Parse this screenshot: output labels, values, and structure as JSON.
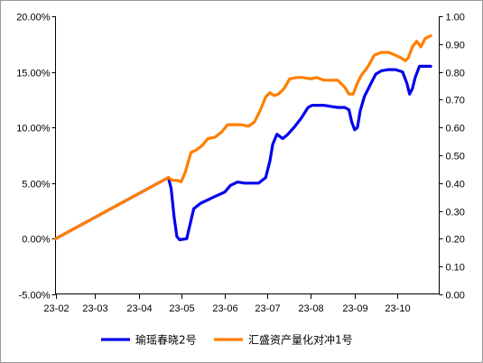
{
  "chart_data": {
    "type": "line",
    "y_left": {
      "min": -5,
      "max": 20,
      "step": 5,
      "unit": "%",
      "ticks": [
        "-5.00%",
        "0.00%",
        "5.00%",
        "10.00%",
        "15.00%",
        "20.00%"
      ]
    },
    "y_right": {
      "min": 0,
      "max": 1,
      "step": 0.1,
      "ticks": [
        "0.00",
        "0.10",
        "0.20",
        "0.30",
        "0.40",
        "0.50",
        "0.60",
        "0.70",
        "0.80",
        "0.90",
        "1.00"
      ]
    },
    "x_ticks": [
      "23-02",
      "23-03",
      "23-04",
      "23-05",
      "23-06",
      "23-07",
      "23-08",
      "23-09",
      "23-10"
    ],
    "grid": false,
    "legend_position": "bottom",
    "series": [
      {
        "name": "瑜瑶春晓2号",
        "color": "#0000ee",
        "axis": "left",
        "x": [
          "2023-02-01",
          "2023-04-22",
          "2023-04-24",
          "2023-04-26",
          "2023-04-28",
          "2023-04-30",
          "2023-05-02",
          "2023-05-05",
          "2023-05-10",
          "2023-05-15",
          "2023-05-20",
          "2023-05-25",
          "2023-06-01",
          "2023-06-05",
          "2023-06-10",
          "2023-06-15",
          "2023-06-20",
          "2023-06-25",
          "2023-06-30",
          "2023-07-03",
          "2023-07-05",
          "2023-07-08",
          "2023-07-12",
          "2023-07-15",
          "2023-07-20",
          "2023-07-25",
          "2023-07-30",
          "2023-08-02",
          "2023-08-05",
          "2023-08-10",
          "2023-08-15",
          "2023-08-20",
          "2023-08-25",
          "2023-08-28",
          "2023-08-30",
          "2023-09-01",
          "2023-09-03",
          "2023-09-05",
          "2023-09-08",
          "2023-09-12",
          "2023-09-16",
          "2023-09-20",
          "2023-09-25",
          "2023-09-30",
          "2023-10-05",
          "2023-10-08",
          "2023-10-10",
          "2023-10-12",
          "2023-10-14",
          "2023-10-17",
          "2023-10-20",
          "2023-10-25"
        ],
        "y": [
          0.0,
          5.5,
          4.5,
          2.0,
          0.2,
          -0.1,
          -0.05,
          0.0,
          2.7,
          3.2,
          3.5,
          3.8,
          4.2,
          4.8,
          5.1,
          5.0,
          5.0,
          5.0,
          5.5,
          7.0,
          8.5,
          9.4,
          9.0,
          9.3,
          10.0,
          10.8,
          11.8,
          12.0,
          12.0,
          12.0,
          11.9,
          11.8,
          11.8,
          11.6,
          10.5,
          9.8,
          10.0,
          11.5,
          12.8,
          13.8,
          14.8,
          15.1,
          15.2,
          15.2,
          15.0,
          14.0,
          13.0,
          13.5,
          14.5,
          15.5,
          15.5,
          15.5
        ]
      },
      {
        "name": "汇盛资产量化对冲1号",
        "color": "#ff7f00",
        "axis": "right",
        "x": [
          "2023-02-01",
          "2023-04-22",
          "2023-04-25",
          "2023-04-28",
          "2023-05-01",
          "2023-05-04",
          "2023-05-08",
          "2023-05-12",
          "2023-05-16",
          "2023-05-20",
          "2023-05-25",
          "2023-05-30",
          "2023-06-03",
          "2023-06-07",
          "2023-06-12",
          "2023-06-18",
          "2023-06-22",
          "2023-06-26",
          "2023-06-30",
          "2023-07-03",
          "2023-07-06",
          "2023-07-09",
          "2023-07-13",
          "2023-07-17",
          "2023-07-22",
          "2023-07-26",
          "2023-08-01",
          "2023-08-05",
          "2023-08-10",
          "2023-08-15",
          "2023-08-20",
          "2023-08-25",
          "2023-08-28",
          "2023-08-31",
          "2023-09-03",
          "2023-09-06",
          "2023-09-10",
          "2023-09-15",
          "2023-09-20",
          "2023-09-25",
          "2023-09-30",
          "2023-10-04",
          "2023-10-07",
          "2023-10-09",
          "2023-10-12",
          "2023-10-15",
          "2023-10-18",
          "2023-10-21",
          "2023-10-25"
        ],
        "y": [
          0.2,
          0.42,
          0.41,
          0.41,
          0.405,
          0.44,
          0.51,
          0.52,
          0.535,
          0.56,
          0.565,
          0.585,
          0.61,
          0.61,
          0.61,
          0.605,
          0.62,
          0.66,
          0.71,
          0.725,
          0.715,
          0.72,
          0.74,
          0.775,
          0.78,
          0.78,
          0.775,
          0.78,
          0.77,
          0.77,
          0.77,
          0.745,
          0.72,
          0.72,
          0.76,
          0.79,
          0.815,
          0.86,
          0.87,
          0.87,
          0.86,
          0.85,
          0.84,
          0.85,
          0.89,
          0.91,
          0.89,
          0.92,
          0.93
        ]
      }
    ]
  }
}
